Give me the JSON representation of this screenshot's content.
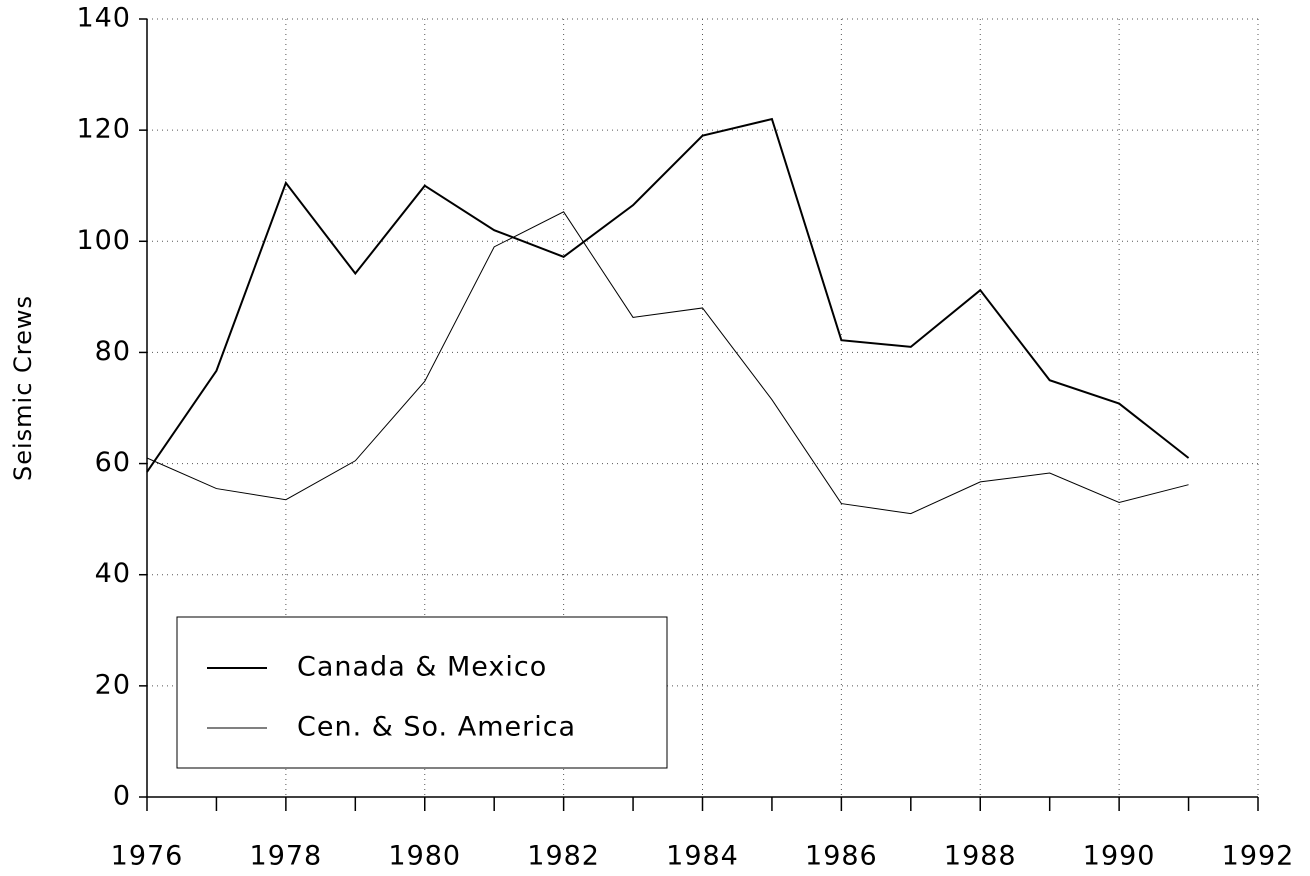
{
  "chart_data": {
    "type": "line",
    "y_label": "Seismic Crews",
    "x": [
      1976,
      1977,
      1978,
      1979,
      1980,
      1981,
      1982,
      1983,
      1984,
      1985,
      1986,
      1987,
      1988,
      1989,
      1990,
      1991
    ],
    "series": [
      {
        "name": "Canada & Mexico",
        "color": "#000000",
        "values": [
          58.5,
          76.7,
          110.5,
          94.2,
          110,
          102,
          97.2,
          106.5,
          119,
          122,
          82.2,
          81,
          91.2,
          75,
          70.8,
          61
        ]
      },
      {
        "name": "Cen. & So. America",
        "color": "#000000",
        "values": [
          61,
          55.5,
          53.5,
          60.5,
          74.8,
          99,
          105.3,
          86.3,
          88,
          71.5,
          52.8,
          51,
          56.7,
          58.3,
          53,
          56.2
        ]
      }
    ],
    "xlim": [
      1976,
      1992
    ],
    "xticks": [
      1976,
      1978,
      1980,
      1982,
      1984,
      1986,
      1988,
      1990,
      1992
    ],
    "ylim": [
      0,
      140
    ],
    "yticks": [
      0,
      20,
      40,
      60,
      80,
      100,
      120,
      140
    ],
    "grid": true,
    "legend": "lower left"
  }
}
